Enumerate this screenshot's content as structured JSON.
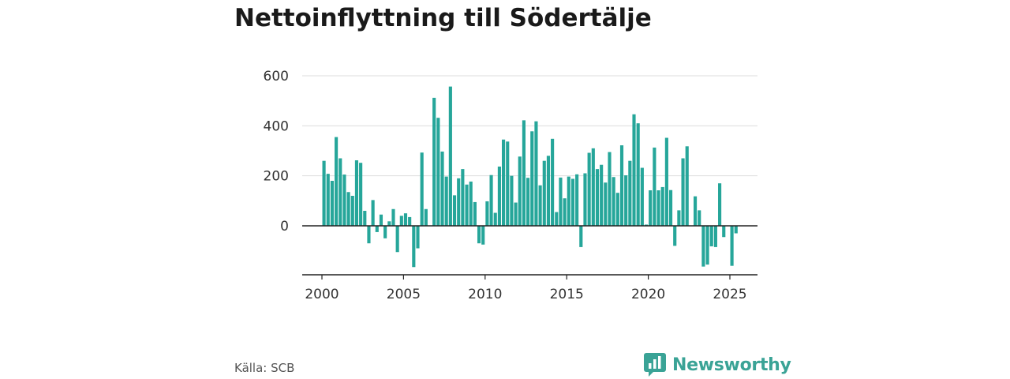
{
  "colors": {
    "bar": "#26a69a",
    "grid": "#dddddd",
    "axis": "#222222",
    "brand": "#3aa396"
  },
  "footer": {
    "source": "Källa: SCB",
    "brand": "Newsworthy"
  },
  "brand_icon": "bar-chart-speech-bubble-icon",
  "chart_data": {
    "type": "bar",
    "title": "Nettoinflyttning till Södertälje",
    "xlabel": "",
    "ylabel": "",
    "ylim": [
      -180,
      600
    ],
    "xlim": [
      1999.4,
      2026.8
    ],
    "yticks": [
      0,
      200,
      400,
      600
    ],
    "ytick_labels": [
      "0",
      "200",
      "400",
      "600"
    ],
    "xticks": [
      2000,
      2005,
      2010,
      2015,
      2020,
      2025
    ],
    "xtick_labels": [
      "2000",
      "2005",
      "2010",
      "2015",
      "2020",
      "2025"
    ],
    "grid": true,
    "legend": "none",
    "series": [
      {
        "x": [
          2000.125,
          2000.375,
          2000.625,
          2000.875,
          2001.125,
          2001.375,
          2001.625,
          2001.875,
          2002.125,
          2002.375,
          2002.625,
          2002.875,
          2003.125,
          2003.375,
          2003.625,
          2003.875,
          2004.125,
          2004.375,
          2004.625,
          2004.875,
          2005.125,
          2005.375,
          2005.625,
          2005.875,
          2006.125,
          2006.375,
          2006.625,
          2006.875,
          2007.125,
          2007.375,
          2007.625,
          2007.875,
          2008.125,
          2008.375,
          2008.625,
          2008.875,
          2009.125,
          2009.375,
          2009.625,
          2009.875,
          2010.125,
          2010.375,
          2010.625,
          2010.875,
          2011.125,
          2011.375,
          2011.625,
          2011.875,
          2012.125,
          2012.375,
          2012.625,
          2012.875,
          2013.125,
          2013.375,
          2013.625,
          2013.875,
          2014.125,
          2014.375,
          2014.625,
          2014.875,
          2015.125,
          2015.375,
          2015.625,
          2015.875,
          2016.125,
          2016.375,
          2016.625,
          2016.875,
          2017.125,
          2017.375,
          2017.625,
          2017.875,
          2018.125,
          2018.375,
          2018.625,
          2018.875,
          2019.125,
          2019.375,
          2019.625,
          2019.875,
          2020.125,
          2020.375,
          2020.625,
          2020.875,
          2021.125,
          2021.375,
          2021.625,
          2021.875,
          2022.125,
          2022.375,
          2022.625,
          2022.875,
          2023.125,
          2023.375,
          2023.625,
          2023.875,
          2024.125,
          2024.375,
          2024.625,
          2024.875,
          2025.125,
          2025.375
        ],
        "values": [
          260,
          208,
          180,
          355,
          270,
          205,
          135,
          120,
          262,
          252,
          60,
          -70,
          103,
          -25,
          45,
          -50,
          18,
          67,
          -105,
          40,
          50,
          35,
          -165,
          -90,
          293,
          67,
          0,
          512,
          432,
          297,
          197,
          557,
          122,
          190,
          227,
          165,
          177,
          95,
          -70,
          -75,
          98,
          203,
          52,
          237,
          345,
          337,
          200,
          93,
          277,
          422,
          192,
          378,
          418,
          162,
          260,
          280,
          348,
          55,
          193,
          110,
          197,
          188,
          206,
          -85,
          210,
          292,
          310,
          227,
          244,
          173,
          295,
          195,
          132,
          322,
          202,
          260,
          446,
          410,
          232,
          5,
          142,
          313,
          142,
          155,
          352,
          143,
          -80,
          62,
          270,
          318,
          0,
          118,
          62,
          -163,
          -155,
          -82,
          -85,
          170,
          -45,
          0,
          -160,
          -30
        ]
      }
    ]
  }
}
